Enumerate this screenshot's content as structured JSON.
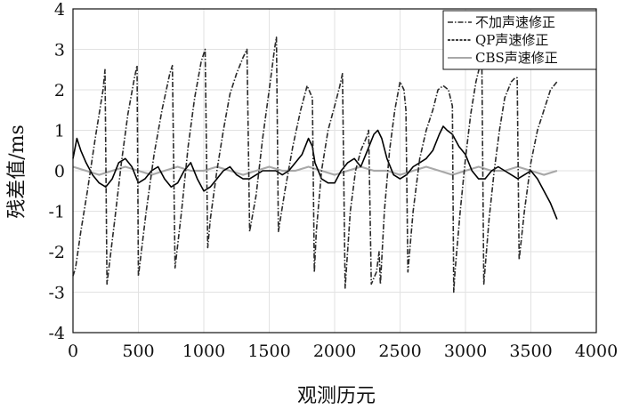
{
  "chart_data": {
    "type": "line",
    "title": "",
    "xlabel": "观测历元",
    "ylabel": "残差值/ms",
    "xlim": [
      0,
      4000
    ],
    "ylim": [
      -4,
      4
    ],
    "xticks": [
      0,
      500,
      1000,
      1500,
      2000,
      2500,
      3000,
      3500,
      4000
    ],
    "yticks": [
      -4,
      -3,
      -2,
      -1,
      0,
      1,
      2,
      3,
      4
    ],
    "grid": true,
    "legend_position": "top-right",
    "series": [
      {
        "name": "不加声速修正",
        "color": "#2a2a2a",
        "style": "dash-dot",
        "x": [
          0,
          20,
          60,
          110,
          170,
          230,
          245,
          260,
          320,
          370,
          420,
          470,
          490,
          500,
          560,
          620,
          680,
          740,
          760,
          780,
          830,
          880,
          930,
          980,
          1010,
          1030,
          1050,
          1100,
          1150,
          1200,
          1250,
          1300,
          1330,
          1350,
          1400,
          1450,
          1500,
          1540,
          1555,
          1570,
          1620,
          1680,
          1740,
          1790,
          1830,
          1845,
          1860,
          1900,
          1950,
          2000,
          2040,
          2060,
          2080,
          2120,
          2160,
          2200,
          2240,
          2260,
          2280,
          2320,
          2340,
          2350,
          2380,
          2420,
          2460,
          2500,
          2530,
          2545,
          2560,
          2600,
          2650,
          2700,
          2750,
          2790,
          2830,
          2870,
          2900,
          2910,
          2920,
          2960,
          3000,
          3040,
          3080,
          3110,
          3125,
          3140,
          3180,
          3220,
          3260,
          3300,
          3350,
          3380,
          3395,
          3410,
          3450,
          3500,
          3550,
          3600,
          3650,
          3700
        ],
        "y": [
          -2.6,
          -2.4,
          -1.5,
          -0.5,
          0.8,
          2.0,
          2.5,
          -2.8,
          -1.2,
          0.2,
          1.4,
          2.3,
          2.6,
          -2.6,
          -1.0,
          0.4,
          1.5,
          2.4,
          2.6,
          -2.4,
          -1.0,
          0.6,
          1.8,
          2.7,
          3.0,
          -1.9,
          -1.2,
          0.0,
          1.0,
          1.9,
          2.4,
          2.8,
          3.0,
          -1.5,
          -0.6,
          0.8,
          2.0,
          3.0,
          3.3,
          -1.5,
          -0.5,
          0.6,
          1.5,
          2.1,
          1.8,
          -2.5,
          -1.5,
          0.0,
          1.0,
          1.6,
          2.1,
          2.4,
          -2.9,
          -1.0,
          0.0,
          0.5,
          0.8,
          1.0,
          -2.8,
          -2.5,
          -2.0,
          -2.8,
          -1.0,
          0.5,
          1.5,
          2.2,
          2.0,
          1.5,
          -2.5,
          -1.0,
          0.3,
          1.0,
          1.5,
          2.0,
          2.1,
          2.0,
          1.6,
          -3.0,
          -2.5,
          -1.0,
          0.3,
          1.4,
          2.2,
          2.6,
          2.7,
          -2.8,
          -1.2,
          0.0,
          1.0,
          1.8,
          2.2,
          2.3,
          2.3,
          -2.2,
          -1.0,
          0.2,
          1.0,
          1.5,
          2.0,
          2.2
        ]
      },
      {
        "name": "QP声速修正",
        "color": "#000000",
        "style": "solid",
        "x": [
          0,
          30,
          60,
          100,
          150,
          200,
          250,
          300,
          350,
          400,
          450,
          500,
          550,
          600,
          650,
          700,
          750,
          800,
          850,
          900,
          950,
          1000,
          1050,
          1100,
          1150,
          1200,
          1250,
          1300,
          1350,
          1400,
          1450,
          1500,
          1550,
          1600,
          1650,
          1700,
          1750,
          1800,
          1830,
          1850,
          1900,
          1950,
          2000,
          2050,
          2100,
          2150,
          2200,
          2250,
          2300,
          2330,
          2360,
          2400,
          2450,
          2500,
          2550,
          2600,
          2650,
          2700,
          2750,
          2800,
          2830,
          2860,
          2900,
          2950,
          3000,
          3050,
          3100,
          3150,
          3200,
          3250,
          3300,
          3350,
          3400,
          3450,
          3500,
          3550,
          3600,
          3650,
          3700
        ],
        "y": [
          0.3,
          0.8,
          0.5,
          0.2,
          -0.1,
          -0.3,
          -0.4,
          -0.2,
          0.2,
          0.3,
          0.1,
          -0.3,
          -0.2,
          0.0,
          0.1,
          -0.2,
          -0.4,
          -0.3,
          0.0,
          0.2,
          -0.2,
          -0.5,
          -0.4,
          -0.2,
          0.0,
          0.1,
          -0.1,
          -0.2,
          -0.2,
          -0.1,
          0.0,
          0.0,
          0.0,
          -0.1,
          0.0,
          0.2,
          0.4,
          0.8,
          0.6,
          0.2,
          -0.2,
          -0.3,
          -0.3,
          0.0,
          0.2,
          0.3,
          0.1,
          0.5,
          0.9,
          1.0,
          0.8,
          0.3,
          -0.1,
          -0.2,
          -0.1,
          0.1,
          0.2,
          0.3,
          0.5,
          0.9,
          1.1,
          1.0,
          0.9,
          0.6,
          0.4,
          0.0,
          -0.2,
          -0.2,
          0.0,
          0.1,
          0.0,
          -0.1,
          -0.2,
          -0.1,
          0.0,
          -0.2,
          -0.5,
          -0.8,
          -1.2
        ]
      },
      {
        "name": "CBS声速修正",
        "color": "#a8a8a8",
        "style": "solid",
        "x": [
          0,
          100,
          200,
          300,
          400,
          500,
          600,
          700,
          800,
          900,
          1000,
          1100,
          1200,
          1300,
          1400,
          1500,
          1600,
          1700,
          1800,
          1900,
          2000,
          2100,
          2200,
          2300,
          2400,
          2500,
          2600,
          2700,
          2800,
          2900,
          3000,
          3100,
          3200,
          3300,
          3400,
          3500,
          3600,
          3700
        ],
        "y": [
          0.1,
          0.0,
          -0.1,
          0.0,
          0.1,
          0.0,
          -0.1,
          0.0,
          0.1,
          0.0,
          0.0,
          0.1,
          0.0,
          -0.1,
          0.0,
          0.1,
          0.0,
          0.0,
          0.1,
          0.0,
          -0.1,
          0.0,
          0.1,
          0.0,
          0.0,
          -0.1,
          0.0,
          0.1,
          0.0,
          -0.1,
          0.0,
          0.1,
          0.0,
          0.0,
          0.1,
          0.0,
          -0.1,
          0.0
        ]
      }
    ]
  }
}
